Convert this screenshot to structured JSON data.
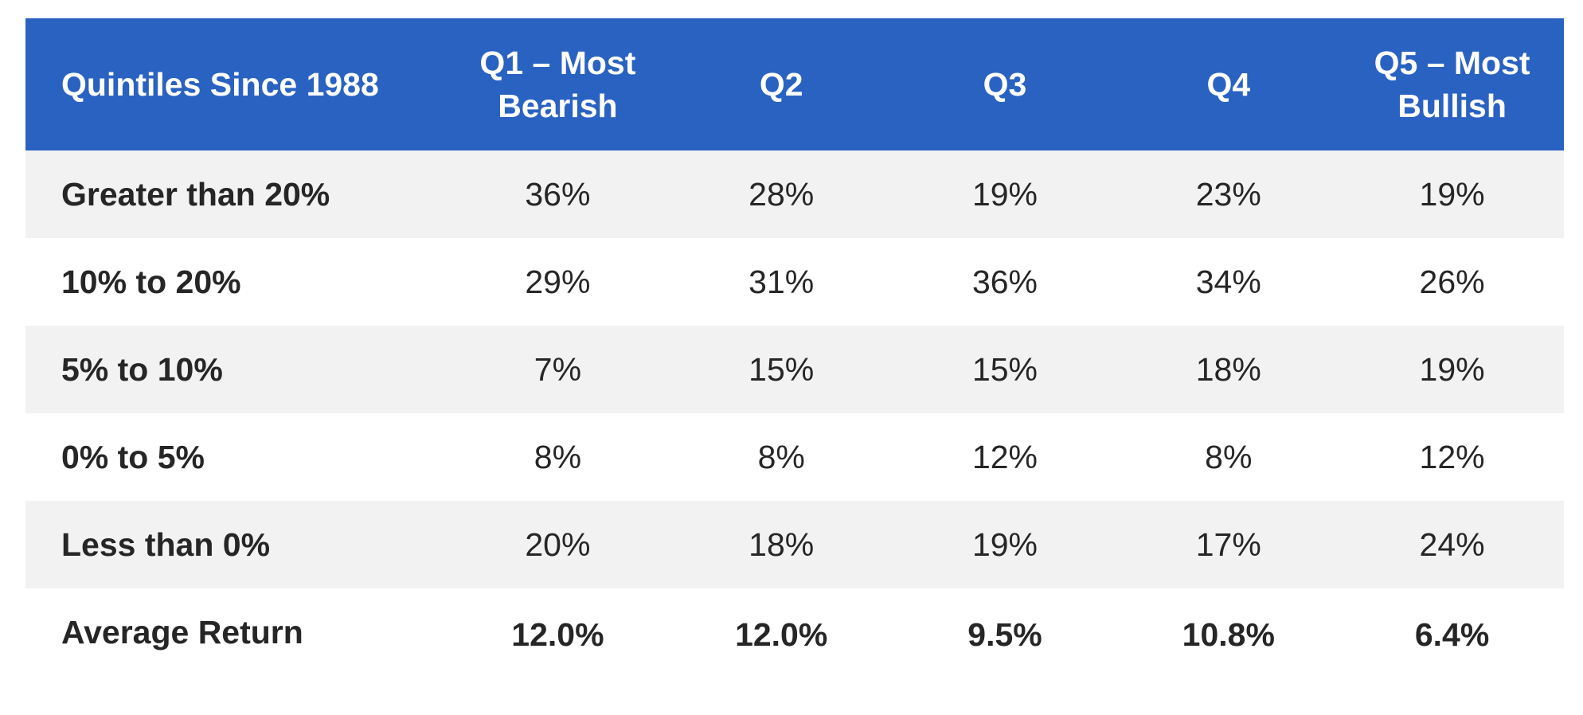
{
  "chart_data": {
    "type": "table",
    "corner_header": "Quintiles Since 1988",
    "columns": [
      "Q1 – Most Bearish",
      "Q2",
      "Q3",
      "Q4",
      "Q5 – Most Bullish"
    ],
    "rows": [
      {
        "label": "Greater than 20%",
        "values": [
          "36%",
          "28%",
          "19%",
          "23%",
          "19%"
        ]
      },
      {
        "label": "10% to 20%",
        "values": [
          "29%",
          "31%",
          "36%",
          "34%",
          "26%"
        ]
      },
      {
        "label": "5% to 10%",
        "values": [
          "7%",
          "15%",
          "15%",
          "18%",
          "19%"
        ]
      },
      {
        "label": "0% to 5%",
        "values": [
          "8%",
          "8%",
          "12%",
          "8%",
          "12%"
        ]
      },
      {
        "label": "Less than 0%",
        "values": [
          "20%",
          "18%",
          "19%",
          "17%",
          "24%"
        ]
      },
      {
        "label": "Average Return",
        "values": [
          "12.0%",
          "12.0%",
          "9.5%",
          "10.8%",
          "6.4%"
        ]
      }
    ],
    "colors": {
      "header_bg": "#2a62c2",
      "header_text": "#ffffff",
      "shaded_row": "#f2f2f2",
      "text": "#262626"
    }
  }
}
